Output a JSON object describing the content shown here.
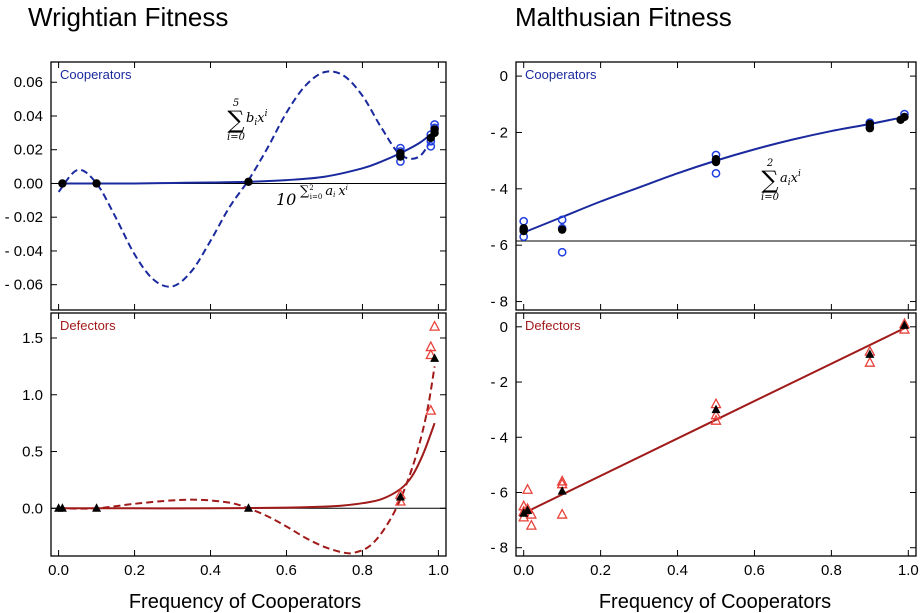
{
  "titles": [
    "Wrightian Fitness",
    "Malthusian Fitness"
  ],
  "xlabel": "Frequency of Cooperators",
  "colors": {
    "coop": "#1a2a9e",
    "coop_pts": "#1f3de0",
    "def": "#a11a1a",
    "def_pts": "#e8413a",
    "frame": "#000000"
  },
  "chart_data": [
    {
      "panel": "wrightian-cooperators",
      "type": "line",
      "label": "Cooperators",
      "xlim": [
        -0.02,
        1.02
      ],
      "ylim": [
        -0.075,
        0.072
      ],
      "yticks": [
        0.06,
        0.04,
        0.02,
        0.0,
        -0.02,
        -0.04,
        -0.06
      ],
      "ytick_labels": [
        "0.06",
        "0.04",
        "0.02",
        "0.00",
        "- 0.02",
        "- 0.04",
        "- 0.06"
      ],
      "hline": 0,
      "annotations": {
        "poly": {
          "sum": "∑",
          "top": "5",
          "bot": "i=0",
          "body": "b",
          "sub": "i",
          "var": "x",
          "sup": "i"
        },
        "exp": {
          "base": "10",
          "sum": "∑",
          "top": "2",
          "bot": "i=0",
          "body": "a",
          "sub": "i",
          "var": "x",
          "sup": "i"
        }
      },
      "series": [
        {
          "style": "dashed",
          "x": [
            0.0,
            0.05,
            0.1,
            0.15,
            0.2,
            0.25,
            0.3,
            0.35,
            0.4,
            0.45,
            0.5,
            0.55,
            0.6,
            0.65,
            0.7,
            0.75,
            0.8,
            0.85,
            0.9,
            0.95,
            0.99
          ],
          "y": [
            -0.005,
            0.008,
            0.0,
            -0.02,
            -0.042,
            -0.057,
            -0.061,
            -0.052,
            -0.034,
            -0.014,
            0.002,
            0.021,
            0.042,
            0.058,
            0.066,
            0.064,
            0.052,
            0.033,
            0.017,
            0.016,
            0.03
          ]
        },
        {
          "style": "solid",
          "x": [
            0.0,
            0.1,
            0.2,
            0.3,
            0.4,
            0.5,
            0.6,
            0.7,
            0.8,
            0.85,
            0.9,
            0.95,
            0.99
          ],
          "y": [
            0.0,
            0.0,
            0.0,
            0.0003,
            0.0006,
            0.001,
            0.002,
            0.004,
            0.009,
            0.013,
            0.018,
            0.024,
            0.031
          ]
        },
        {
          "style": "open-circles",
          "x": [
            0.9,
            0.9,
            0.9,
            0.9,
            0.98,
            0.98,
            0.98,
            0.99,
            0.99
          ],
          "y": [
            0.013,
            0.016,
            0.019,
            0.021,
            0.022,
            0.025,
            0.029,
            0.033,
            0.035
          ]
        },
        {
          "style": "filled-circles",
          "x": [
            0.01,
            0.1,
            0.5,
            0.9,
            0.9,
            0.98,
            0.99,
            0.99
          ],
          "y": [
            0.0,
            0.0,
            0.001,
            0.016,
            0.018,
            0.027,
            0.03,
            0.032
          ]
        }
      ]
    },
    {
      "panel": "wrightian-defectors",
      "type": "line",
      "label": "Defectors",
      "xlim": [
        -0.02,
        1.02
      ],
      "ylim": [
        -0.42,
        1.72
      ],
      "yticks": [
        1.5,
        1.0,
        0.5,
        0.0
      ],
      "ytick_labels": [
        "1.5",
        "1.0",
        "0.5",
        "0.0"
      ],
      "hline": 0,
      "xticks": [
        0.0,
        0.2,
        0.4,
        0.6,
        0.8,
        1.0
      ],
      "xtick_labels": [
        "0.0",
        "0.2",
        "0.4",
        "0.6",
        "0.8",
        "1.0"
      ],
      "series": [
        {
          "style": "dashed",
          "x": [
            0.0,
            0.1,
            0.2,
            0.3,
            0.37,
            0.45,
            0.5,
            0.55,
            0.6,
            0.65,
            0.7,
            0.75,
            0.78,
            0.82,
            0.86,
            0.9,
            0.94,
            0.97,
            0.99
          ],
          "y": [
            0.0,
            0.0,
            0.04,
            0.07,
            0.075,
            0.05,
            0.0,
            -0.07,
            -0.16,
            -0.26,
            -0.34,
            -0.39,
            -0.39,
            -0.33,
            -0.17,
            0.08,
            0.45,
            0.85,
            1.25
          ]
        },
        {
          "style": "solid",
          "x": [
            0.0,
            0.2,
            0.4,
            0.5,
            0.6,
            0.7,
            0.75,
            0.8,
            0.85,
            0.9,
            0.93,
            0.96,
            0.99
          ],
          "y": [
            0.0,
            0.0,
            0.0,
            0.002,
            0.006,
            0.015,
            0.025,
            0.045,
            0.08,
            0.17,
            0.28,
            0.48,
            0.75
          ]
        },
        {
          "style": "open-triangles",
          "x": [
            0.9,
            0.9,
            0.98,
            0.98,
            0.98,
            0.99
          ],
          "y": [
            0.06,
            0.12,
            0.86,
            1.35,
            1.42,
            1.6
          ]
        },
        {
          "style": "filled-triangles",
          "x": [
            0.0,
            0.01,
            0.1,
            0.5,
            0.9,
            0.99
          ],
          "y": [
            0.0,
            0.0,
            0.0,
            0.0,
            0.1,
            1.32
          ]
        }
      ]
    },
    {
      "panel": "malthusian-cooperators",
      "type": "line",
      "label": "Cooperators",
      "xlim": [
        -0.02,
        1.02
      ],
      "ylim": [
        -8.3,
        0.5
      ],
      "yticks": [
        0,
        -2,
        -4,
        -6,
        -8
      ],
      "ytick_labels": [
        "0",
        "- 2",
        "- 4",
        "- 6",
        "- 8"
      ],
      "hline": -5.85,
      "annotations": {
        "poly": {
          "sum": "∑",
          "top": "2",
          "bot": "i=0",
          "body": "a",
          "sub": "i",
          "var": "x",
          "sup": "i"
        }
      },
      "series": [
        {
          "style": "solid",
          "x": [
            0.0,
            0.1,
            0.2,
            0.3,
            0.4,
            0.5,
            0.6,
            0.7,
            0.8,
            0.9,
            0.99
          ],
          "y": [
            -5.55,
            -5.0,
            -4.45,
            -3.95,
            -3.45,
            -3.0,
            -2.6,
            -2.25,
            -1.95,
            -1.7,
            -1.45
          ]
        },
        {
          "style": "open-circles",
          "x": [
            0.0,
            0.0,
            0.0,
            0.1,
            0.1,
            0.1,
            0.5,
            0.5,
            0.5,
            0.9,
            0.9,
            0.99
          ],
          "y": [
            -5.15,
            -5.45,
            -5.7,
            -5.1,
            -5.4,
            -6.25,
            -2.8,
            -3.0,
            -3.45,
            -1.65,
            -1.8,
            -1.35
          ]
        },
        {
          "style": "filled-circles",
          "x": [
            0.0,
            0.0,
            0.1,
            0.5,
            0.5,
            0.9,
            0.9,
            0.98,
            0.99
          ],
          "y": [
            -5.4,
            -5.5,
            -5.45,
            -2.95,
            -3.05,
            -1.7,
            -1.85,
            -1.55,
            -1.45
          ]
        }
      ]
    },
    {
      "panel": "malthusian-defectors",
      "type": "line",
      "label": "Defectors",
      "xlim": [
        -0.02,
        1.02
      ],
      "ylim": [
        -8.3,
        0.5
      ],
      "yticks": [
        0,
        -2,
        -4,
        -6,
        -8
      ],
      "ytick_labels": [
        "0",
        "- 2",
        "- 4",
        "- 6",
        "- 8"
      ],
      "xticks": [
        0.0,
        0.2,
        0.4,
        0.6,
        0.8,
        1.0
      ],
      "xtick_labels": [
        "0.0",
        "0.2",
        "0.4",
        "0.6",
        "0.8",
        "1.0"
      ],
      "series": [
        {
          "style": "solid",
          "x": [
            0.0,
            0.99
          ],
          "y": [
            -6.75,
            -0.05
          ]
        },
        {
          "style": "open-triangles",
          "x": [
            0.0,
            0.0,
            0.0,
            0.01,
            0.01,
            0.02,
            0.02,
            0.1,
            0.1,
            0.1,
            0.5,
            0.5,
            0.5,
            0.9,
            0.9,
            0.99,
            0.99
          ],
          "y": [
            -6.5,
            -6.9,
            -6.7,
            -5.9,
            -6.6,
            -7.2,
            -6.8,
            -5.6,
            -5.7,
            -6.8,
            -2.8,
            -3.2,
            -3.4,
            -0.9,
            -1.3,
            0.1,
            -0.1
          ]
        },
        {
          "style": "filled-triangles",
          "x": [
            0.0,
            0.01,
            0.1,
            0.5,
            0.9,
            0.99
          ],
          "y": [
            -6.75,
            -6.65,
            -5.95,
            -3.0,
            -1.0,
            0.05
          ]
        }
      ]
    }
  ]
}
